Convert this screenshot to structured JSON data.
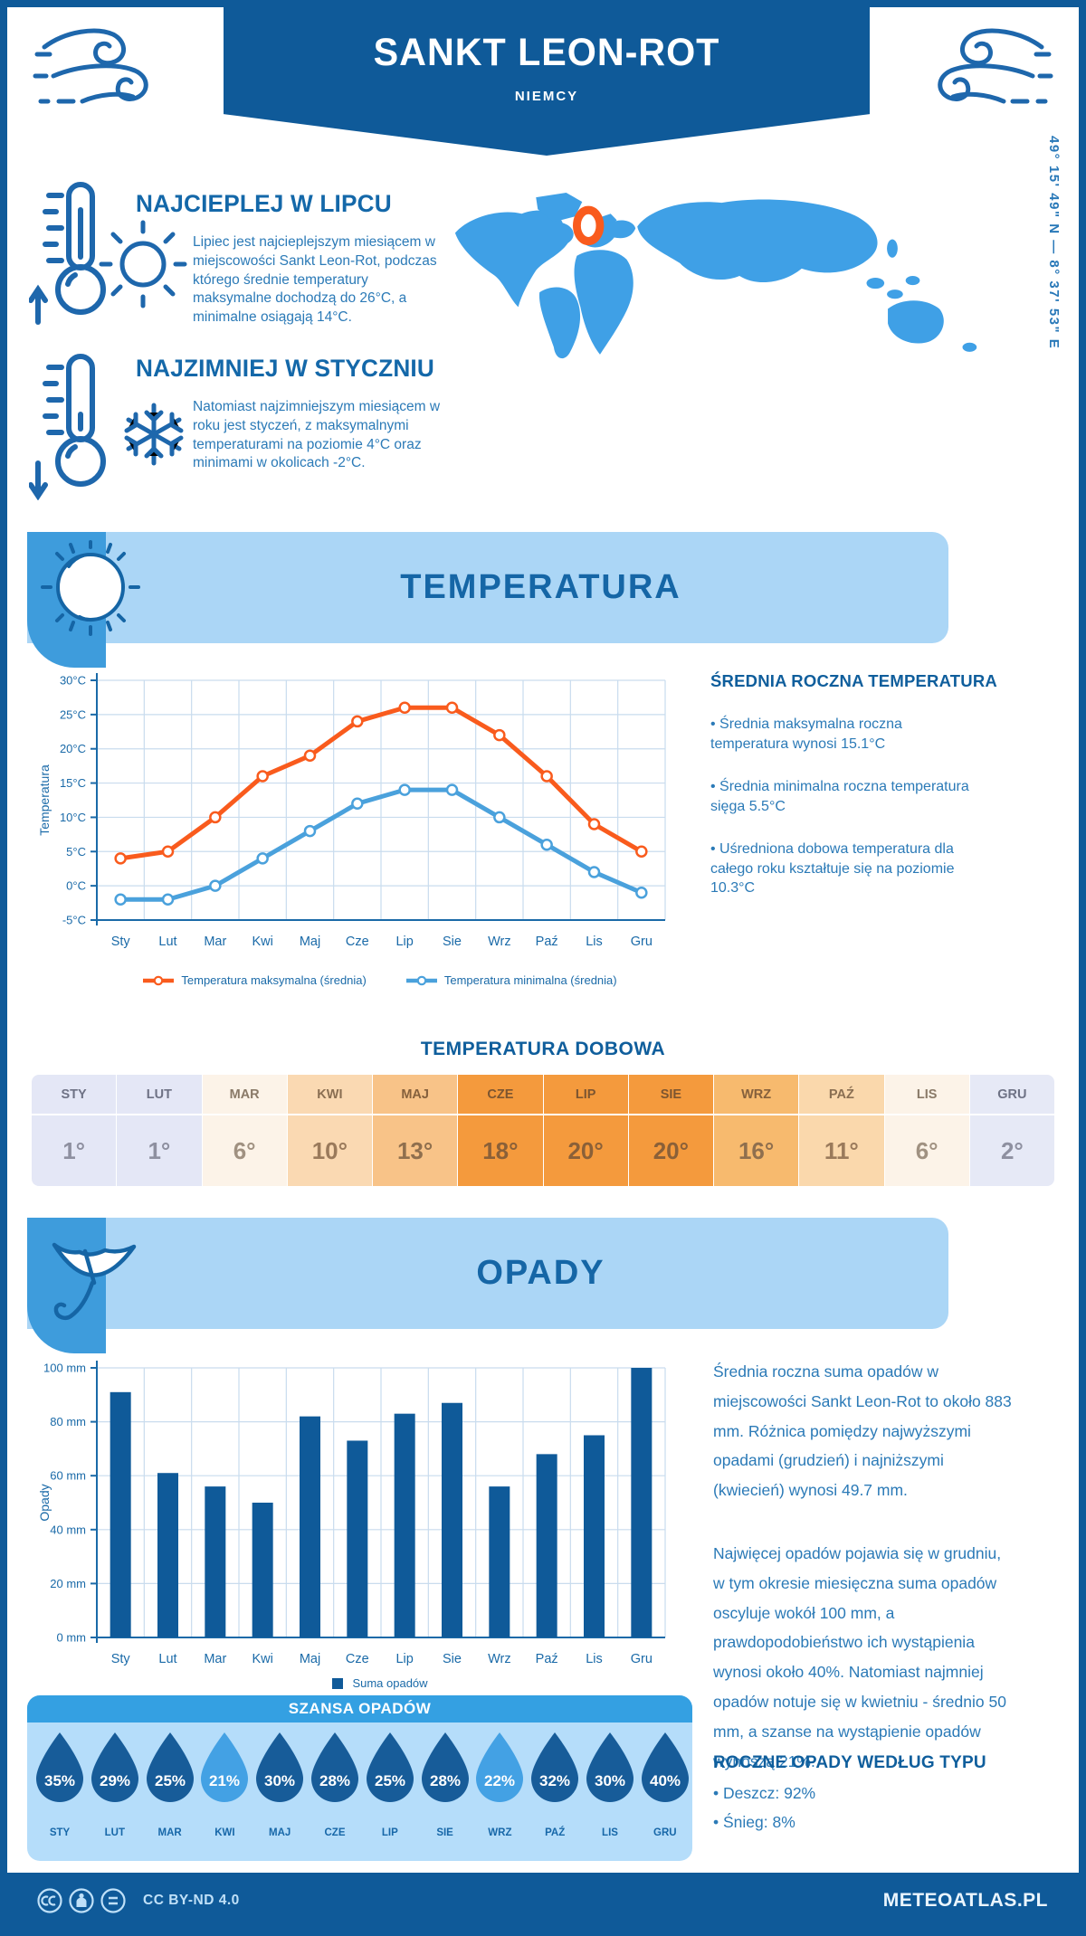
{
  "header": {
    "title": "SANKT LEON-ROT",
    "subtitle": "NIEMCY"
  },
  "coordinates": "49° 15' 49\" N — 8° 37' 53\" E",
  "warm_section": {
    "title": "NAJCIEPLEJ W LIPCU",
    "text": "Lipiec jest najcieplejszym miesiącem w miejscowości Sankt Leon-Rot, podczas którego średnie temperatury maksymalne dochodzą do 26°C, a minimalne osiągają 14°C."
  },
  "cold_section": {
    "title": "NAJZIMNIEJ W STYCZNIU",
    "text": "Natomiast najzimniejszym miesiącem w roku jest styczeń, z maksymalnymi temperaturami na poziomie 4°C oraz minimami w okolicach -2°C."
  },
  "temperature_section": {
    "title": "TEMPERATURA",
    "summary_title": "ŚREDNIA ROCZNA TEMPERATURA",
    "bullets": [
      "• Średnia maksymalna roczna temperatura wynosi 15.1°C",
      "• Średnia minimalna roczna temperatura sięga 5.5°C",
      "• Uśredniona dobowa temperatura dla całego roku kształtuje się na poziomie 10.3°C"
    ],
    "daily_title": "TEMPERATURA DOBOWA"
  },
  "precipitation_section": {
    "title": "OPADY",
    "text1": "Średnia roczna suma opadów w miejscowości Sankt Leon-Rot to około 883 mm. Różnica pomiędzy najwyższymi opadami (grudzień) i najniższymi (kwiecień) wynosi 49.7 mm.",
    "text2": "Najwięcej opadów pojawia się w grudniu, w tym okresie miesięczna suma opadów oscyluje wokół 100 mm, a prawdopodobieństwo ich wystąpienia wynosi około 40%. Natomiast najmniej opadów notuje się w kwietniu - średnio 50 mm, a szanse na wystąpienie opadów wynoszą 21%.",
    "chance_title": "SZANSA OPADÓW",
    "type_title": "ROCZNE OPADY WEDŁUG TYPU",
    "type_bullets": [
      "• Deszcz: 92%",
      "• Śnieg: 8%"
    ]
  },
  "footer": {
    "license": "CC BY-ND 4.0",
    "site": "METEOATLAS.PL"
  },
  "colors": {
    "dark_blue": "#0F5A99",
    "light_banner": "#ABD6F6",
    "icon_square": "#3E9CDC",
    "map_land": "#3FA0E6",
    "marker_orange": "#F95B1D",
    "axis_blue": "#1A6AA8",
    "grid": "#C9DCEE",
    "body_text": "#2B7AB7",
    "panel": "#B5DDFA",
    "panel_bar": "#34A0E2"
  },
  "chart_data": [
    {
      "type": "line",
      "categories": [
        "Sty",
        "Lut",
        "Mar",
        "Kwi",
        "Maj",
        "Cze",
        "Lip",
        "Sie",
        "Wrz",
        "Paź",
        "Lis",
        "Gru"
      ],
      "series": [
        {
          "name": "Temperatura maksymalna (średnia)",
          "color": "#F95B1D",
          "values": [
            4,
            5,
            10,
            16,
            19,
            24,
            26,
            26,
            22,
            16,
            9,
            5
          ]
        },
        {
          "name": "Temperatura minimalna (średnia)",
          "color": "#4AA1DC",
          "values": [
            -2,
            -2,
            0,
            4,
            8,
            12,
            14,
            14,
            10,
            6,
            2,
            -1
          ]
        }
      ],
      "ylabel": "Temperatura",
      "ylim": [
        -5,
        30
      ],
      "ystep": 5,
      "ytick_suffix": "°C",
      "grid": true,
      "legend_position": "bottom"
    },
    {
      "type": "table",
      "title": "TEMPERATURA DOBOWA",
      "columns": [
        "STY",
        "LUT",
        "MAR",
        "KWI",
        "MAJ",
        "CZE",
        "LIP",
        "SIE",
        "WRZ",
        "PAŹ",
        "LIS",
        "GRU"
      ],
      "values": [
        "1°",
        "1°",
        "6°",
        "10°",
        "13°",
        "18°",
        "20°",
        "20°",
        "16°",
        "11°",
        "6°",
        "2°"
      ],
      "cell_colors": [
        "#E4E7F6",
        "#E4E7F6",
        "#FCF3E8",
        "#FAD9B2",
        "#F8C388",
        "#F49A3D",
        "#F49A3D",
        "#F49A3D",
        "#F7BA6E",
        "#FAD8AC",
        "#FCF3E8",
        "#E6E9F6"
      ],
      "header_text_colors": [
        "#6E7285",
        "#6E7285",
        "#8A7A68",
        "#8A6F52",
        "#85603C",
        "#7C5530",
        "#7C5530",
        "#7C5530",
        "#85603C",
        "#8A6F52",
        "#8A7A68",
        "#6E7285"
      ],
      "value_text_colors": [
        "#8E90A0",
        "#8E90A0",
        "#A09181",
        "#9A7A5B",
        "#8F6F4E",
        "#8A6038",
        "#8A6038",
        "#8A6038",
        "#8F6F4E",
        "#9A7A5B",
        "#A09181",
        "#8E90A0"
      ]
    },
    {
      "type": "bar",
      "categories": [
        "Sty",
        "Lut",
        "Mar",
        "Kwi",
        "Maj",
        "Cze",
        "Lip",
        "Sie",
        "Wrz",
        "Paź",
        "Lis",
        "Gru"
      ],
      "values": [
        91,
        61,
        56,
        50,
        82,
        73,
        83,
        87,
        56,
        68,
        75,
        100
      ],
      "color": "#0F5A99",
      "ylabel": "Opady",
      "ylim": [
        0,
        100
      ],
      "ystep": 20,
      "ytick_suffix": " mm",
      "grid": true,
      "legend": "Suma opadów"
    },
    {
      "type": "pictogram",
      "title": "SZANSA OPADÓW",
      "categories": [
        "STY",
        "LUT",
        "MAR",
        "KWI",
        "MAJ",
        "CZE",
        "LIP",
        "SIE",
        "WRZ",
        "PAŹ",
        "LIS",
        "GRU"
      ],
      "values": [
        "35%",
        "29%",
        "25%",
        "21%",
        "30%",
        "28%",
        "25%",
        "28%",
        "22%",
        "32%",
        "30%",
        "40%"
      ],
      "drop_color_dark": "#175C99",
      "drop_color_light": "#43A1E4",
      "light_indices": [
        3,
        8
      ]
    }
  ]
}
